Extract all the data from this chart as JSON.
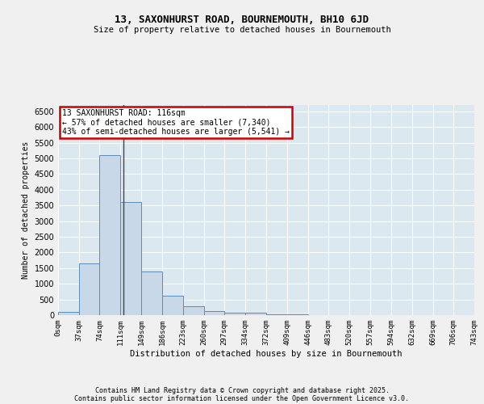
{
  "title1": "13, SAXONHURST ROAD, BOURNEMOUTH, BH10 6JD",
  "title2": "Size of property relative to detached houses in Bournemouth",
  "xlabel": "Distribution of detached houses by size in Bournemouth",
  "ylabel": "Number of detached properties",
  "bar_color": "#c8d8e8",
  "bar_edge_color": "#5b8db8",
  "bar_left_edges": [
    0,
    37,
    74,
    111,
    149,
    186,
    223,
    260,
    297,
    334,
    372,
    409,
    446,
    483,
    520,
    557,
    594,
    632,
    669,
    706
  ],
  "bar_widths": [
    37,
    37,
    37,
    38,
    37,
    37,
    37,
    37,
    37,
    38,
    37,
    37,
    37,
    37,
    37,
    37,
    38,
    37,
    37,
    37
  ],
  "bar_heights": [
    100,
    1650,
    5100,
    3620,
    1380,
    610,
    290,
    130,
    70,
    70,
    30,
    15,
    5,
    3,
    1,
    1,
    0,
    0,
    0,
    0
  ],
  "xlim": [
    0,
    743
  ],
  "ylim": [
    0,
    6700
  ],
  "yticks": [
    0,
    500,
    1000,
    1500,
    2000,
    2500,
    3000,
    3500,
    4000,
    4500,
    5000,
    5500,
    6000,
    6500
  ],
  "xtick_labels": [
    "0sqm",
    "37sqm",
    "74sqm",
    "111sqm",
    "149sqm",
    "186sqm",
    "223sqm",
    "260sqm",
    "297sqm",
    "334sqm",
    "372sqm",
    "409sqm",
    "446sqm",
    "483sqm",
    "520sqm",
    "557sqm",
    "594sqm",
    "632sqm",
    "669sqm",
    "706sqm",
    "743sqm"
  ],
  "xtick_positions": [
    0,
    37,
    74,
    111,
    149,
    186,
    223,
    260,
    297,
    334,
    372,
    409,
    446,
    483,
    520,
    557,
    594,
    632,
    669,
    706,
    743
  ],
  "vline_x": 116,
  "vline_color": "#444444",
  "annotation_text": "13 SAXONHURST ROAD: 116sqm\n← 57% of detached houses are smaller (7,340)\n43% of semi-detached houses are larger (5,541) →",
  "annotation_box_color": "#cc0000",
  "bg_color": "#dce8f0",
  "grid_color": "#ffffff",
  "fig_bg_color": "#f0f0f0",
  "footer1": "Contains HM Land Registry data © Crown copyright and database right 2025.",
  "footer2": "Contains public sector information licensed under the Open Government Licence v3.0."
}
